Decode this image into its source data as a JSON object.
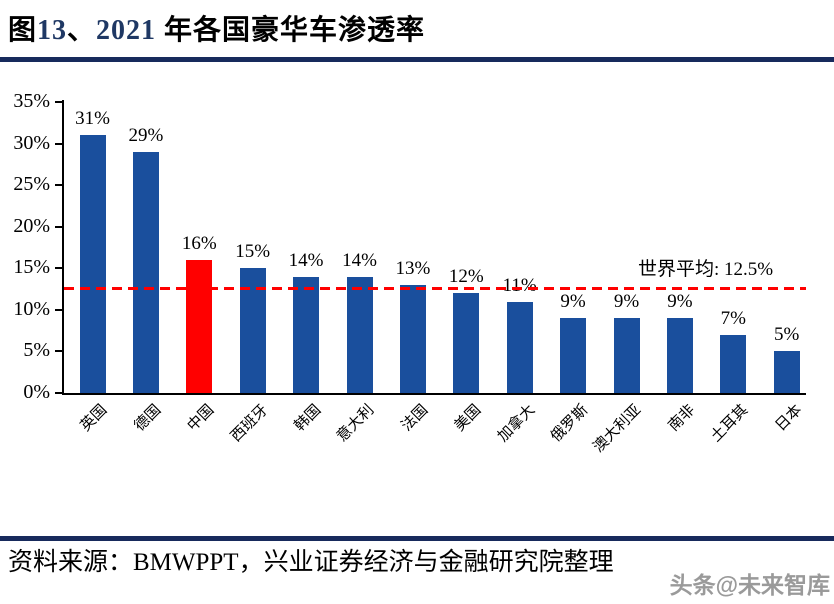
{
  "header": {
    "title_prefix": "图",
    "title_fig_num": "13",
    "title_separator": "、",
    "title_year": "2021",
    "title_rest": " 年各国豪华车渗透率"
  },
  "chart_data": {
    "type": "bar",
    "title": "2021 年各国豪华车渗透率",
    "categories": [
      "英国",
      "德国",
      "中国",
      "西班牙",
      "韩国",
      "意大利",
      "法国",
      "美国",
      "加拿大",
      "俄罗斯",
      "澳大利亚",
      "南非",
      "土耳其",
      "日本"
    ],
    "values": [
      31,
      29,
      16,
      15,
      14,
      14,
      13,
      12,
      11,
      9,
      9,
      9,
      7,
      5
    ],
    "bar_labels": [
      "31%",
      "29%",
      "16%",
      "15%",
      "14%",
      "14%",
      "13%",
      "12%",
      "11%",
      "9%",
      "9%",
      "9%",
      "7%",
      "5%"
    ],
    "highlight_index": 2,
    "highlight_category": "中国",
    "ylim": [
      0,
      35
    ],
    "ytick_step": 5,
    "ytick_labels": [
      "0%",
      "5%",
      "10%",
      "15%",
      "20%",
      "25%",
      "30%",
      "35%"
    ],
    "grid": "off",
    "legend": "none",
    "reference_line": {
      "value": 12.5,
      "label": "世界平均: 12.5%",
      "style": "dashed",
      "color": "#FF0000"
    },
    "bar_color": "#1A4F9D",
    "highlight_color": "#FF0000"
  },
  "footer": {
    "source": "资料来源：BMWPPT，兴业证券经济与金融研究院整理",
    "watermark": "头条@未来智库"
  },
  "colors": {
    "accent_rule": "#172A5C",
    "title_number": "#1F3864",
    "axis": "#000000",
    "bar": "#1A4F9D",
    "highlight": "#FF0000",
    "reference": "#FF0000",
    "watermark": "#9A9A9A"
  }
}
